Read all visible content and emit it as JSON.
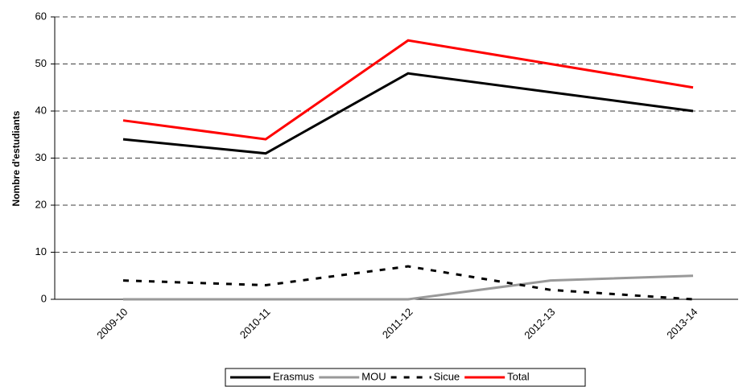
{
  "chart_data": {
    "type": "line",
    "y_label": "Nombre d'estudiants",
    "categories": [
      "2009-10",
      "2010-11",
      "2011-12",
      "2012-13",
      "2013-14"
    ],
    "series": [
      {
        "name": "Erasmus",
        "color": "#000000",
        "line_style": "solid",
        "values": [
          34,
          31,
          48,
          44,
          40
        ]
      },
      {
        "name": "MOU",
        "color": "#999999",
        "line_style": "solid",
        "values": [
          0,
          0,
          0,
          4,
          5
        ]
      },
      {
        "name": "Sicue",
        "color": "#000000",
        "line_style": "dashed",
        "values": [
          4,
          3,
          7,
          2,
          0
        ]
      },
      {
        "name": "Total",
        "color": "#ff0000",
        "line_style": "solid",
        "values": [
          38,
          34,
          55,
          50,
          45
        ]
      }
    ],
    "ylim": [
      0,
      60
    ],
    "yticks": [
      0,
      10,
      20,
      30,
      40,
      50,
      60
    ],
    "grid": true,
    "legend": "bottom"
  }
}
